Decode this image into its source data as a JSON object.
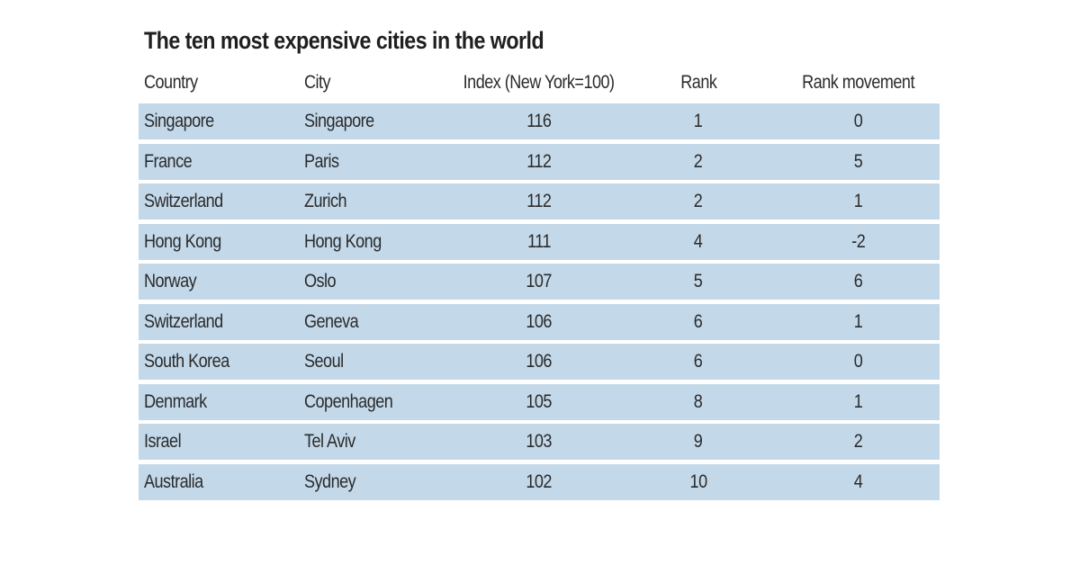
{
  "chart_data": {
    "type": "table",
    "title": "The ten most expensive cities in the world",
    "columns": [
      "Country",
      "City",
      "Index (New York=100)",
      "Rank",
      "Rank movement"
    ],
    "rows": [
      [
        "Singapore",
        "Singapore",
        "116",
        "1",
        "0"
      ],
      [
        "France",
        "Paris",
        "112",
        "2",
        "5"
      ],
      [
        "Switzerland",
        "Zurich",
        "112",
        "2",
        "1"
      ],
      [
        "Hong Kong",
        "Hong Kong",
        "111",
        "4",
        "-2"
      ],
      [
        "Norway",
        "Oslo",
        "107",
        "5",
        "6"
      ],
      [
        "Switzerland",
        "Geneva",
        "106",
        "6",
        "1"
      ],
      [
        "South Korea",
        "Seoul",
        "106",
        "6",
        "0"
      ],
      [
        "Denmark",
        "Copenhagen",
        "105",
        "8",
        "1"
      ],
      [
        "Israel",
        "Tel Aviv",
        "103",
        "9",
        "2"
      ],
      [
        "Australia",
        "Sydney",
        "102",
        "10",
        "4"
      ]
    ]
  },
  "colors": {
    "row_background": "#c3d8e9",
    "text": "#2b2b2b"
  }
}
